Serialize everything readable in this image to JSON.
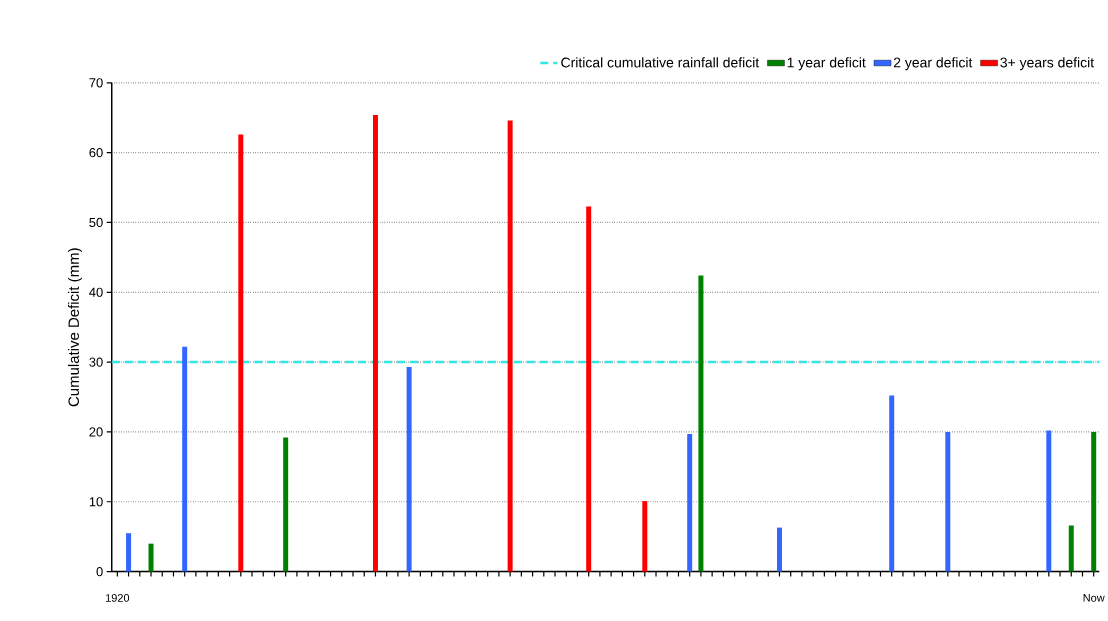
{
  "chart_data": {
    "type": "bar",
    "ylabel": "Cumulative Deficit (mm)",
    "categories": [
      "1920",
      null,
      null,
      null,
      null,
      null,
      null,
      null,
      null,
      null,
      null,
      null,
      null,
      null,
      null,
      null,
      null,
      null,
      null,
      null,
      null,
      null,
      null,
      null,
      null,
      null,
      null,
      null,
      null,
      null,
      null,
      null,
      null,
      null,
      null,
      null,
      null,
      null,
      null,
      null,
      null,
      null,
      null,
      null,
      null,
      null,
      null,
      null,
      null,
      null,
      null,
      null,
      null,
      null,
      null,
      null,
      null,
      null,
      null,
      null,
      null,
      null,
      null,
      null,
      null,
      null,
      null,
      null,
      null,
      null,
      null,
      null,
      null,
      null,
      null,
      null,
      null,
      null,
      null,
      null,
      null,
      null,
      null,
      null,
      null,
      null,
      null,
      "Now"
    ],
    "series": [
      {
        "name": "1 year deficit",
        "color": "#008000",
        "values": [
          null,
          null,
          null,
          4,
          null,
          null,
          null,
          null,
          null,
          null,
          null,
          null,
          null,
          null,
          null,
          19.2,
          null,
          null,
          null,
          null,
          null,
          null,
          null,
          null,
          null,
          null,
          null,
          null,
          null,
          null,
          null,
          null,
          null,
          null,
          null,
          null,
          null,
          null,
          null,
          null,
          null,
          null,
          null,
          null,
          null,
          null,
          null,
          null,
          null,
          null,
          null,
          null,
          42.4,
          null,
          null,
          null,
          null,
          null,
          null,
          null,
          null,
          null,
          null,
          null,
          null,
          null,
          null,
          null,
          null,
          null,
          null,
          null,
          null,
          null,
          null,
          null,
          null,
          null,
          null,
          null,
          null,
          null,
          null,
          null,
          null,
          6.6,
          null,
          20
        ]
      },
      {
        "name": "2 year deficit",
        "color": "#3366ff",
        "values": [
          null,
          5.5,
          null,
          null,
          null,
          null,
          32.2,
          null,
          null,
          null,
          null,
          null,
          null,
          null,
          null,
          null,
          null,
          null,
          null,
          null,
          null,
          null,
          null,
          null,
          null,
          null,
          29.3,
          null,
          null,
          null,
          null,
          null,
          null,
          null,
          null,
          null,
          null,
          null,
          null,
          null,
          null,
          null,
          null,
          null,
          null,
          null,
          null,
          null,
          null,
          null,
          null,
          19.7,
          null,
          null,
          null,
          null,
          null,
          null,
          null,
          6.3,
          null,
          null,
          null,
          null,
          null,
          null,
          null,
          null,
          null,
          25.2,
          null,
          null,
          null,
          null,
          20,
          null,
          null,
          null,
          null,
          null,
          null,
          null,
          null,
          20.2,
          null,
          null,
          null,
          null
        ]
      },
      {
        "name": "3+ years deficit",
        "color": "#ff0000",
        "values": [
          null,
          null,
          null,
          null,
          null,
          null,
          null,
          null,
          null,
          null,
          null,
          62.6,
          null,
          null,
          null,
          null,
          null,
          null,
          null,
          null,
          null,
          null,
          null,
          65.4,
          null,
          null,
          null,
          null,
          null,
          null,
          null,
          null,
          null,
          null,
          null,
          64.6,
          null,
          null,
          null,
          null,
          null,
          null,
          52.3,
          null,
          null,
          null,
          null,
          10.1,
          null,
          null,
          null,
          null,
          null,
          null,
          null,
          null,
          null,
          null,
          null,
          null,
          null,
          null,
          null,
          null,
          null,
          null,
          null,
          null,
          null,
          null,
          null,
          null,
          null,
          null,
          null,
          null,
          null,
          null,
          null,
          null,
          null,
          null,
          null,
          null,
          null,
          null,
          null,
          null
        ]
      }
    ],
    "ylim": [
      0,
      70
    ],
    "yticks": [
      0,
      10,
      20,
      30,
      40,
      50,
      60,
      70
    ],
    "ref_lines": [
      {
        "axis": "y",
        "value": 30,
        "label": "Critical cumulative rainfall deficit",
        "color": "#33e6e6",
        "line_style": "dashed"
      }
    ],
    "grid": "y",
    "legend": "top right"
  }
}
